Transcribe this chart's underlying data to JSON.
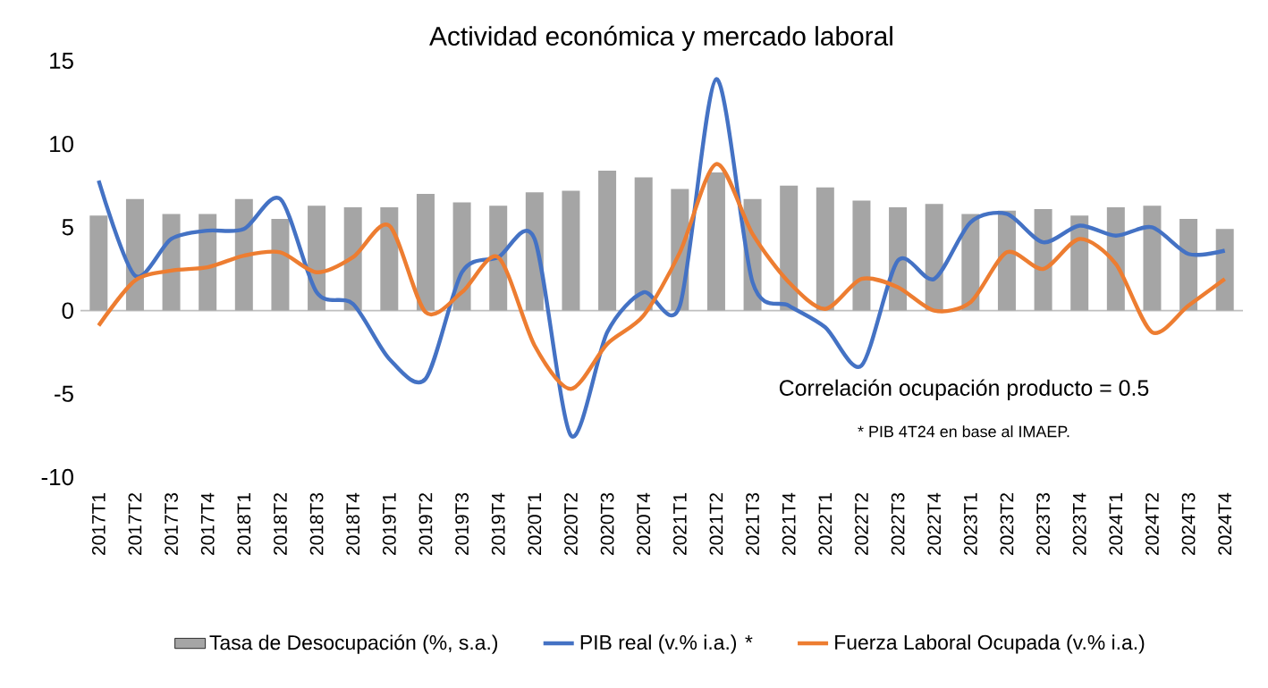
{
  "chart_data": {
    "type": "line",
    "title": "Actividad económica y mercado laboral",
    "categories": [
      "2017T1",
      "2017T2",
      "2017T3",
      "2017T4",
      "2018T1",
      "2018T2",
      "2018T3",
      "2018T4",
      "2019T1",
      "2019T2",
      "2019T3",
      "2019T4",
      "2020T1",
      "2020T2",
      "2020T3",
      "2020T4",
      "2021T1",
      "2021T2",
      "2021T3",
      "2021T4",
      "2022T1",
      "2022T2",
      "2022T3",
      "2022T4",
      "2023T1",
      "2023T2",
      "2023T3",
      "2023T4",
      "2024T1",
      "2024T2",
      "2024T3",
      "2024T4"
    ],
    "series": [
      {
        "name": "Tasa de Desocupación (%, s.a.)",
        "type": "bar",
        "color": "#a5a5a5",
        "values": [
          5.7,
          6.7,
          5.8,
          5.8,
          6.7,
          5.5,
          6.3,
          6.2,
          6.2,
          7.0,
          6.5,
          6.3,
          7.1,
          7.2,
          8.4,
          8.0,
          7.3,
          8.3,
          6.7,
          7.5,
          7.4,
          6.6,
          6.2,
          6.4,
          5.8,
          6.0,
          6.1,
          5.7,
          6.2,
          6.3,
          5.5,
          4.9
        ]
      },
      {
        "name": "PIB real (v.% i.a.) *",
        "color": "#4472c4",
        "values": [
          7.8,
          2.1,
          4.3,
          4.8,
          4.9,
          6.7,
          1.1,
          0.4,
          -2.9,
          -4.1,
          2.3,
          3.2,
          4.3,
          -7.5,
          -1.3,
          1.1,
          0.3,
          13.9,
          1.7,
          0.3,
          -1.0,
          -3.3,
          3.0,
          1.9,
          5.3,
          5.8,
          4.1,
          5.1,
          4.5,
          5.0,
          3.4,
          3.6
        ]
      },
      {
        "name": "Fuerza Laboral Ocupada (v.% i.a.)",
        "color": "#ed7d31",
        "values": [
          -0.9,
          1.8,
          2.4,
          2.6,
          3.3,
          3.5,
          2.3,
          3.2,
          5.1,
          -0.1,
          1.1,
          3.2,
          -2.1,
          -4.7,
          -2.0,
          -0.3,
          3.5,
          8.8,
          4.6,
          1.7,
          0.1,
          1.9,
          1.4,
          0.0,
          0.5,
          3.5,
          2.5,
          4.3,
          2.8,
          -1.3,
          0.3,
          1.9
        ]
      }
    ],
    "ylim": [
      -10,
      15
    ],
    "yticks": [
      -10,
      -5,
      0,
      5,
      10,
      15
    ],
    "legend": "bottom",
    "annotations": [
      "Correlación ocupación producto = 0.5",
      "* PIB 4T24 en base al IMAEP."
    ]
  }
}
